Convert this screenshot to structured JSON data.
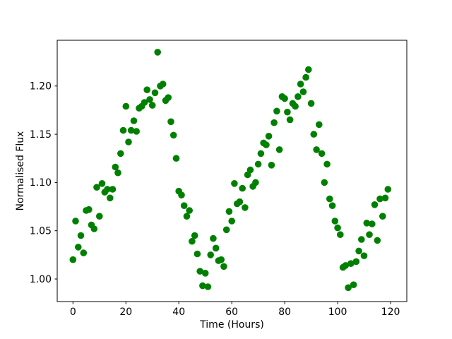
{
  "figure": {
    "background": "#ffffff",
    "plot_border_color": "#000000"
  },
  "chart_data": {
    "type": "scatter",
    "title": "",
    "xlabel": "Time (Hours)",
    "ylabel": "Normalised Flux",
    "legend": null,
    "grid": false,
    "marker": {
      "shape": "circle",
      "color": "#008000",
      "radius_px": 4.8
    },
    "xlim": [
      -5.95,
      126.13
    ],
    "ylim": [
      0.9766,
      1.2474
    ],
    "xticks": {
      "values": [
        0,
        20,
        40,
        60,
        80,
        100,
        120
      ],
      "labels": [
        "0",
        "20",
        "40",
        "60",
        "80",
        "100",
        "120"
      ]
    },
    "yticks": {
      "values": [
        1.0,
        1.05,
        1.1,
        1.15,
        1.2
      ],
      "labels": [
        "1.00",
        "1.05",
        "1.10",
        "1.15",
        "1.20"
      ]
    },
    "x": [
      0,
      1,
      2,
      3,
      4,
      5,
      6,
      7,
      8,
      9,
      10,
      11,
      12,
      13,
      14,
      15,
      16,
      17,
      18,
      19,
      20,
      21,
      22,
      23,
      24,
      25,
      26,
      27,
      28,
      29,
      30,
      31,
      32,
      33,
      34,
      35,
      36,
      37,
      38,
      39,
      40,
      41,
      42,
      43,
      44,
      45,
      46,
      47,
      48,
      49,
      50,
      51,
      52,
      53,
      54,
      55,
      56,
      57,
      58,
      59,
      60,
      61,
      62,
      63,
      64,
      65,
      66,
      67,
      68,
      69,
      70,
      71,
      72,
      73,
      74,
      75,
      76,
      77,
      78,
      79,
      80,
      81,
      82,
      83,
      84,
      85,
      86,
      87,
      88,
      89,
      90,
      91,
      92,
      93,
      94,
      95,
      96,
      97,
      98,
      99,
      100,
      101,
      102,
      103,
      104,
      105,
      106,
      107,
      108,
      109,
      110,
      111,
      112,
      113,
      114,
      115,
      116,
      117,
      118,
      119
    ],
    "y": [
      1.02,
      1.06,
      1.033,
      1.045,
      1.027,
      1.071,
      1.072,
      1.056,
      1.052,
      1.095,
      1.065,
      1.099,
      1.09,
      1.093,
      1.084,
      1.093,
      1.116,
      1.11,
      1.13,
      1.154,
      1.179,
      1.142,
      1.154,
      1.164,
      1.153,
      1.177,
      1.179,
      1.183,
      1.196,
      1.186,
      1.18,
      1.193,
      1.235,
      1.2,
      1.202,
      1.185,
      1.188,
      1.163,
      1.149,
      1.125,
      1.091,
      1.087,
      1.076,
      1.065,
      1.071,
      1.039,
      1.045,
      1.026,
      1.008,
      0.993,
      1.006,
      0.992,
      1.025,
      1.042,
      1.032,
      1.019,
      1.02,
      1.013,
      1.051,
      1.07,
      1.06,
      1.099,
      1.078,
      1.08,
      1.094,
      1.074,
      1.108,
      1.113,
      1.096,
      1.1,
      1.119,
      1.13,
      1.141,
      1.139,
      1.148,
      1.118,
      1.162,
      1.174,
      1.134,
      1.189,
      1.187,
      1.173,
      1.165,
      1.182,
      1.179,
      1.189,
      1.202,
      1.194,
      1.209,
      1.217,
      1.182,
      1.15,
      1.134,
      1.16,
      1.13,
      1.1,
      1.119,
      1.083,
      1.076,
      1.06,
      1.053,
      1.046,
      1.012,
      1.014,
      0.991,
      1.016,
      0.994,
      1.018,
      1.029,
      1.041,
      1.024,
      1.058,
      1.046,
      1.057,
      1.077,
      1.04,
      1.083,
      1.065,
      1.084,
      1.093
    ]
  }
}
